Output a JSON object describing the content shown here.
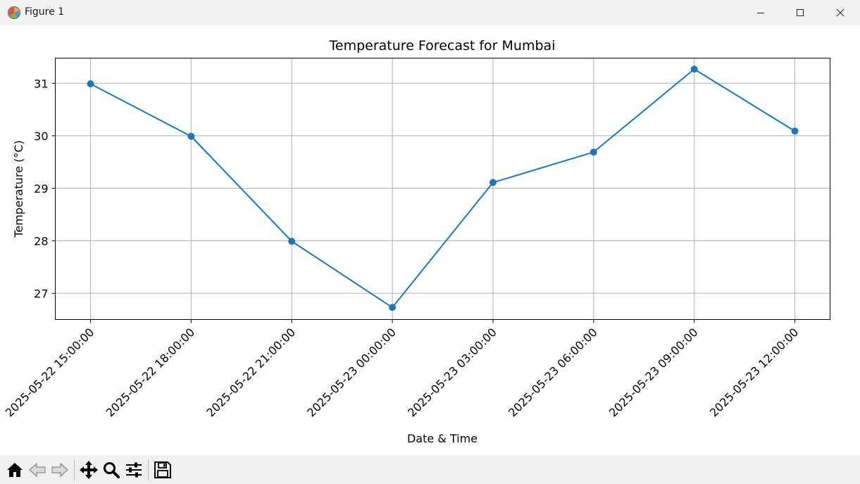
{
  "window": {
    "title": "Figure 1",
    "controls": [
      "minimize",
      "maximize",
      "close"
    ]
  },
  "toolbar": {
    "icons": [
      "home-icon",
      "back-icon",
      "forward-icon",
      "pan-icon",
      "zoom-icon",
      "configure-subplots-icon",
      "save-icon"
    ]
  },
  "chart_data": {
    "type": "line",
    "title": "Temperature Forecast for Mumbai",
    "xlabel": "Date & Time",
    "ylabel": "Temperature (°C)",
    "x": [
      "2025-05-22 15:00:00",
      "2025-05-22 18:00:00",
      "2025-05-22 21:00:00",
      "2025-05-23 00:00:00",
      "2025-05-23 03:00:00",
      "2025-05-23 06:00:00",
      "2025-05-23 09:00:00",
      "2025-05-23 12:00:00"
    ],
    "values": [
      30.99,
      29.99,
      27.99,
      26.73,
      29.11,
      29.69,
      31.27,
      30.09
    ],
    "ylim": [
      26.5,
      31.48
    ],
    "yticks": [
      27,
      28,
      29,
      30,
      31
    ],
    "grid": true,
    "marker": "circle",
    "color": "#1f77b4"
  }
}
